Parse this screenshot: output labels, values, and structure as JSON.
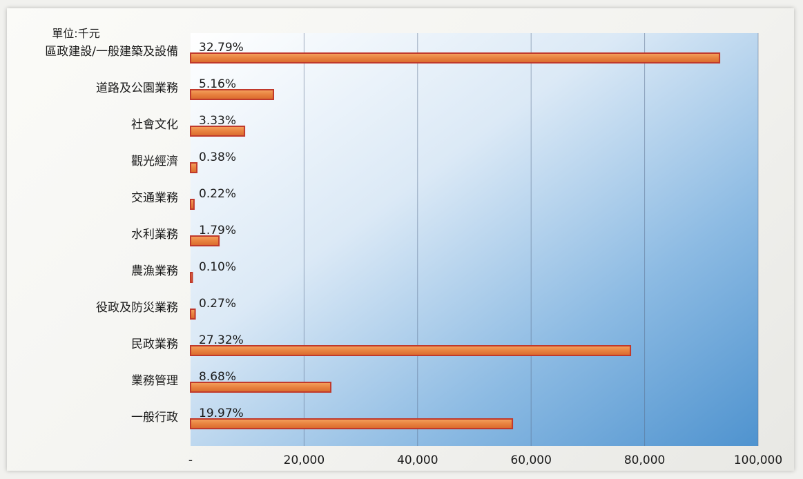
{
  "chart_data": {
    "type": "bar",
    "orientation": "horizontal",
    "unit_label": "單位:千元",
    "categories": [
      "區政建設/一般建築及設備",
      "道路及公園業務",
      "社會文化",
      "觀光經濟",
      "交通業務",
      "水利業務",
      "農漁業務",
      "役政及防災業務",
      "民政業務",
      "業務管理",
      "一般行政"
    ],
    "values": [
      93200,
      14600,
      9500,
      1100,
      600,
      5000,
      300,
      800,
      77500,
      24700,
      56700
    ],
    "data_labels": [
      "32.79%",
      "5.16%",
      "3.33%",
      "0.38%",
      "0.22%",
      "1.79%",
      "0.10%",
      "0.27%",
      "27.32%",
      "8.68%",
      "19.97%"
    ],
    "x_ticks": [
      "-",
      "20,000",
      "40,000",
      "60,000",
      "80,000",
      "100,000"
    ],
    "xlim": [
      0,
      100000
    ],
    "grid": true,
    "colors": {
      "bar_fill": "#e8823f",
      "bar_edge": "#c0392b",
      "plot_bg_light": "#fdfeff",
      "plot_bg_dark": "#4f93cf"
    }
  }
}
